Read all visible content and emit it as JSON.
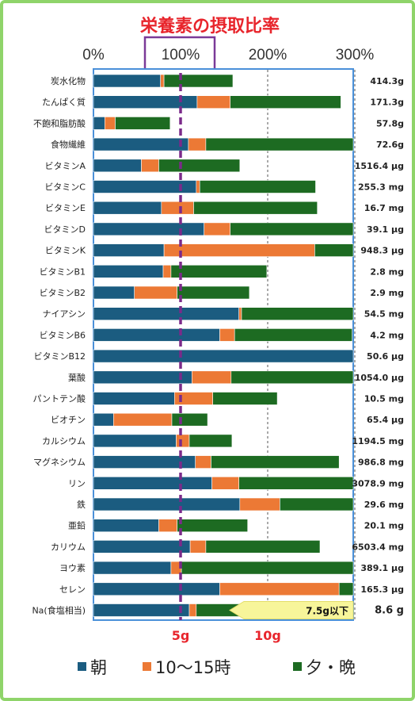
{
  "chart_data": {
    "type": "bar",
    "stacked": true,
    "orientation": "horizontal",
    "title": "栄養素の摂取比率",
    "x_ticks": [
      "0%",
      "100%",
      "200%",
      "300%"
    ],
    "xlim": [
      0,
      300
    ],
    "grid": true,
    "highlighted_tick": "100%",
    "categories": [
      "炭水化物",
      "たんぱく質",
      "不飽和脂肪酸",
      "食物繊維",
      "ビタミンA",
      "ビタミンC",
      "ビタミンE",
      "ビタミンD",
      "ビタミンK",
      "ビタミンB1",
      "ビタミンB2",
      "ナイアシン",
      "ビタミンB6",
      "ビタミンB12",
      "葉酸",
      "パントテン酸",
      "ビオチン",
      "カルシウム",
      "マグネシウム",
      "リン",
      "鉄",
      "亜鉛",
      "カリウム",
      "ヨウ素",
      "セレン",
      "Na(食塩相当)"
    ],
    "amounts": [
      "414.3g",
      "171.3g",
      "57.8g",
      "72.6g",
      "1516.4 μg",
      "255.3 mg",
      "16.7 mg",
      "39.1 μg",
      "948.3 μg",
      "2.8 mg",
      "2.9 mg",
      "54.5 mg",
      "4.2 mg",
      "50.6 μg",
      "1054.0 μg",
      "10.5 mg",
      "65.4 μg",
      "1194.5 mg",
      "986.8 mg",
      "3078.9 mg",
      "29.6 mg",
      "20.1 mg",
      "6503.4 mg",
      "389.1 μg",
      "165.3 μg",
      "8.6 g"
    ],
    "series": [
      {
        "name": "朝",
        "color": "#1b5c80",
        "values": [
          77,
          119,
          13,
          109,
          55,
          118,
          78,
          127,
          81,
          80,
          47,
          167,
          145,
          300,
          113,
          93,
          23,
          95,
          117,
          136,
          168,
          75,
          111,
          89,
          145,
          110
        ]
      },
      {
        "name": "10～15時",
        "color": "#ec7935",
        "values": [
          4,
          38,
          12,
          20,
          20,
          4,
          37,
          30,
          173,
          9,
          49,
          3,
          17,
          0,
          45,
          44,
          67,
          15,
          18,
          31,
          46,
          21,
          18,
          12,
          137,
          8
        ]
      },
      {
        "name": "夕・晩",
        "color": "#1d6b22",
        "values": [
          79,
          127,
          63,
          171,
          93,
          133,
          142,
          143,
          46,
          110,
          83,
          130,
          135,
          0,
          142,
          74,
          41,
          49,
          147,
          133,
          86,
          81,
          131,
          198,
          19,
          54
        ]
      }
    ],
    "salt_axis": {
      "ticks": [
        "5g",
        "10g"
      ],
      "limit_note": "7.5g以下"
    }
  },
  "legend": [
    {
      "label": "朝",
      "color": "#1b5c80"
    },
    {
      "label": "10～15時",
      "color": "#ec7935"
    },
    {
      "label": "夕・晩",
      "color": "#1d6b22"
    }
  ]
}
